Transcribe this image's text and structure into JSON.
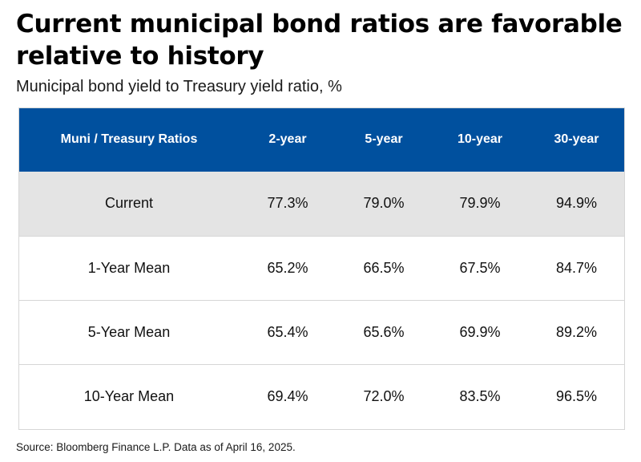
{
  "title": "Current municipal bond ratios are favorable relative to history",
  "subtitle": "Municipal bond yield to Treasury yield ratio, %",
  "source": "Source: Bloomberg Finance L.P. Data as of April 16, 2025.",
  "colors": {
    "header_background": "#00509e",
    "header_text": "#ffffff",
    "highlight_row": "#e4e4e4"
  },
  "chart_data": {
    "type": "table",
    "title": "Current municipal bond ratios are favorable relative to history",
    "subtitle": "Municipal bond yield to Treasury yield ratio, %",
    "columns": [
      "Muni / Treasury Ratios",
      "2-year",
      "5-year",
      "10-year",
      "30-year"
    ],
    "rows": [
      {
        "label": "Current",
        "values": [
          "77.3%",
          "79.0%",
          "79.9%",
          "94.9%"
        ]
      },
      {
        "label": "1-Year Mean",
        "values": [
          "65.2%",
          "66.5%",
          "67.5%",
          "84.7%"
        ]
      },
      {
        "label": "5-Year Mean",
        "values": [
          "65.4%",
          "65.6%",
          "69.9%",
          "89.2%"
        ]
      },
      {
        "label": "10-Year Mean",
        "values": [
          "69.4%",
          "72.0%",
          "83.5%",
          "96.5%"
        ]
      }
    ]
  }
}
